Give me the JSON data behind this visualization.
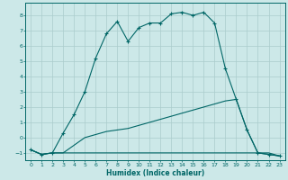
{
  "xlabel": "Humidex (Indice chaleur)",
  "xlim": [
    -0.5,
    23.5
  ],
  "ylim": [
    -1.5,
    8.8
  ],
  "xticks": [
    0,
    1,
    2,
    3,
    4,
    5,
    6,
    7,
    8,
    9,
    10,
    11,
    12,
    13,
    14,
    15,
    16,
    17,
    18,
    19,
    20,
    21,
    22,
    23
  ],
  "yticks": [
    -1,
    0,
    1,
    2,
    3,
    4,
    5,
    6,
    7,
    8
  ],
  "background_color": "#cce8e8",
  "grid_color": "#aacccc",
  "line_color": "#006666",
  "series": [
    {
      "x": [
        0,
        1,
        2,
        3,
        4,
        5,
        6,
        7,
        8,
        9,
        10,
        11,
        12,
        13,
        14,
        15,
        16,
        17,
        18,
        19,
        20,
        21,
        22,
        23
      ],
      "y": [
        -0.8,
        -1.1,
        -1.0,
        -1.0,
        -1.0,
        -1.0,
        -1.0,
        -1.0,
        -1.0,
        -1.0,
        -1.0,
        -1.0,
        -1.0,
        -1.0,
        -1.0,
        -1.0,
        -1.0,
        -1.0,
        -1.0,
        -1.0,
        -1.0,
        -1.0,
        -1.0,
        -1.2
      ],
      "marker": null
    },
    {
      "x": [
        0,
        1,
        2,
        3,
        4,
        5,
        6,
        7,
        8,
        9,
        10,
        11,
        12,
        13,
        14,
        15,
        16,
        17,
        18,
        19,
        20,
        21,
        22,
        23
      ],
      "y": [
        -0.8,
        -1.1,
        -1.0,
        -1.0,
        -0.5,
        0.0,
        0.2,
        0.4,
        0.5,
        0.6,
        0.8,
        1.0,
        1.2,
        1.4,
        1.6,
        1.8,
        2.0,
        2.2,
        2.4,
        2.5,
        0.5,
        -1.0,
        -1.1,
        -1.2
      ],
      "marker": null
    },
    {
      "x": [
        0,
        1,
        2,
        3,
        4,
        5,
        6,
        7,
        8,
        9,
        10,
        11,
        12,
        13,
        14,
        15,
        16,
        17,
        18,
        19,
        20,
        21,
        22,
        23
      ],
      "y": [
        -0.8,
        -1.1,
        -1.0,
        0.3,
        1.5,
        3.0,
        5.2,
        6.8,
        7.6,
        6.3,
        7.2,
        7.5,
        7.5,
        8.1,
        8.2,
        8.0,
        8.2,
        7.5,
        4.5,
        2.5,
        0.5,
        -1.0,
        -1.1,
        -1.2
      ],
      "marker": "+"
    }
  ]
}
